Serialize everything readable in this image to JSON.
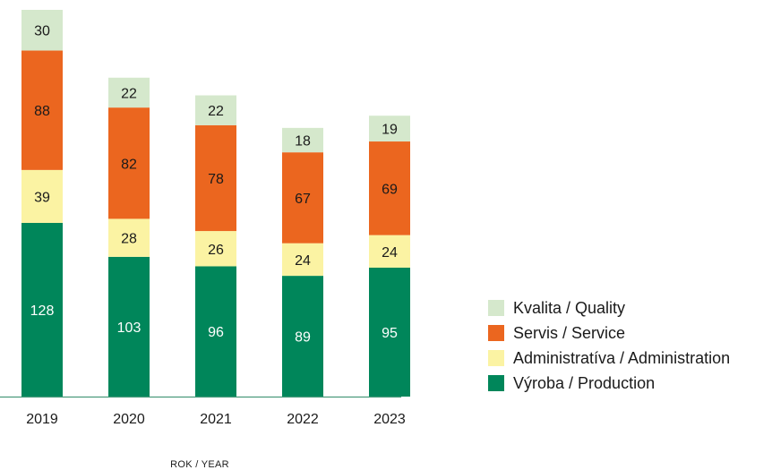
{
  "chart_data": {
    "type": "bar",
    "stacked": true,
    "categories": [
      "2019",
      "2020",
      "2021",
      "2022",
      "2023"
    ],
    "series": [
      {
        "name": "Výroba / Production",
        "color": "#00865a",
        "label_color": "#ffffff",
        "values": [
          128,
          103,
          96,
          89,
          95
        ]
      },
      {
        "name": "Administratíva / Administration",
        "color": "#fbf3a3",
        "label_color": "#1a1a1a",
        "values": [
          39,
          28,
          26,
          24,
          24
        ]
      },
      {
        "name": "Servis / Service",
        "color": "#eb661f",
        "label_color": "#1a1a1a",
        "values": [
          88,
          82,
          78,
          67,
          69
        ]
      },
      {
        "name": "Kvalita / Quality",
        "color": "#d5e8cc",
        "label_color": "#1a1a1a",
        "values": [
          30,
          22,
          22,
          18,
          19
        ]
      }
    ],
    "legend_order": [
      "Kvalita / Quality",
      "Servis / Service",
      "Administratíva / Administration",
      "Výroba / Production"
    ],
    "legend_position": "right",
    "xlabel": "ROK / YEAR",
    "ylabel": "",
    "title": "",
    "ylim": [
      0,
      290
    ],
    "grid": false,
    "baseline_color": "#4a9a7c"
  }
}
